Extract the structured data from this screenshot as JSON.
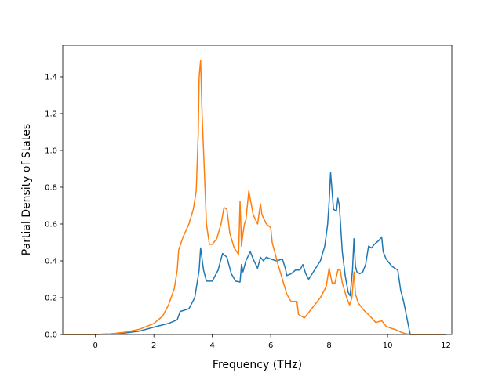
{
  "chart_data": {
    "type": "line",
    "title": "",
    "xlabel": "Frequency (THz)",
    "ylabel": "Partial Density of States",
    "xlim": [
      -1.12,
      12.2
    ],
    "ylim": [
      0.0,
      1.57
    ],
    "xticks": [
      0,
      2,
      4,
      6,
      8,
      10,
      12
    ],
    "xtick_labels": [
      "0",
      "2",
      "4",
      "6",
      "8",
      "10",
      "12"
    ],
    "yticks": [
      0.0,
      0.2,
      0.4,
      0.6,
      0.8,
      1.0,
      1.2,
      1.4
    ],
    "ytick_labels": [
      "0.0",
      "0.2",
      "0.4",
      "0.6",
      "0.8",
      "1.0",
      "1.2",
      "1.4"
    ],
    "grid": false,
    "legend": "none",
    "series": [
      {
        "color": "#1f77b4",
        "x": [
          -1.12,
          0.0,
          0.5,
          1.0,
          1.5,
          2.0,
          2.5,
          2.8,
          2.9,
          3.2,
          3.4,
          3.55,
          3.6,
          3.7,
          3.8,
          4.0,
          4.2,
          4.35,
          4.5,
          4.65,
          4.8,
          4.95,
          5.0,
          5.05,
          5.15,
          5.3,
          5.4,
          5.55,
          5.65,
          5.75,
          5.85,
          6.0,
          6.2,
          6.4,
          6.5,
          6.55,
          6.7,
          6.85,
          7.0,
          7.1,
          7.2,
          7.3,
          7.5,
          7.7,
          7.85,
          7.95,
          8.0,
          8.05,
          8.15,
          8.25,
          8.3,
          8.35,
          8.45,
          8.55,
          8.65,
          8.72,
          8.8,
          8.85,
          8.9,
          8.95,
          9.05,
          9.15,
          9.25,
          9.35,
          9.45,
          9.55,
          9.7,
          9.8,
          9.85,
          9.95,
          10.15,
          10.35,
          10.45,
          10.55,
          10.65,
          10.75,
          10.78,
          10.85,
          12.0
        ],
        "values": [
          0.0,
          0.0,
          0.003,
          0.008,
          0.018,
          0.04,
          0.06,
          0.08,
          0.125,
          0.14,
          0.2,
          0.35,
          0.47,
          0.35,
          0.29,
          0.29,
          0.35,
          0.44,
          0.42,
          0.33,
          0.29,
          0.285,
          0.38,
          0.34,
          0.4,
          0.45,
          0.41,
          0.36,
          0.42,
          0.4,
          0.42,
          0.41,
          0.4,
          0.41,
          0.36,
          0.32,
          0.33,
          0.35,
          0.35,
          0.38,
          0.33,
          0.3,
          0.35,
          0.4,
          0.48,
          0.6,
          0.72,
          0.88,
          0.68,
          0.67,
          0.74,
          0.7,
          0.45,
          0.32,
          0.23,
          0.21,
          0.35,
          0.52,
          0.37,
          0.34,
          0.33,
          0.34,
          0.38,
          0.48,
          0.47,
          0.49,
          0.51,
          0.53,
          0.45,
          0.41,
          0.37,
          0.35,
          0.24,
          0.18,
          0.1,
          0.02,
          0.0,
          0.0,
          0.0
        ]
      },
      {
        "color": "#ff7f0e",
        "x": [
          -1.12,
          0.0,
          0.5,
          1.0,
          1.5,
          2.0,
          2.3,
          2.5,
          2.7,
          2.8,
          2.85,
          3.0,
          3.2,
          3.35,
          3.45,
          3.52,
          3.55,
          3.6,
          3.65,
          3.75,
          3.8,
          3.9,
          4.0,
          4.15,
          4.3,
          4.4,
          4.5,
          4.6,
          4.75,
          4.9,
          4.95,
          5.0,
          5.05,
          5.1,
          5.15,
          5.25,
          5.4,
          5.55,
          5.65,
          5.7,
          5.85,
          6.0,
          6.05,
          6.25,
          6.4,
          6.55,
          6.65,
          6.7,
          6.9,
          6.95,
          7.05,
          7.15,
          7.3,
          7.5,
          7.7,
          7.9,
          8.0,
          8.1,
          8.2,
          8.3,
          8.38,
          8.45,
          8.6,
          8.7,
          8.78,
          8.85,
          8.9,
          9.0,
          9.2,
          9.4,
          9.6,
          9.8,
          9.95,
          10.1,
          10.3,
          10.5,
          10.65,
          10.8,
          11.0,
          11.9
        ],
        "values": [
          0.0,
          0.0,
          0.003,
          0.012,
          0.028,
          0.06,
          0.1,
          0.16,
          0.25,
          0.35,
          0.46,
          0.53,
          0.6,
          0.68,
          0.78,
          1.1,
          1.4,
          1.49,
          1.2,
          0.8,
          0.6,
          0.49,
          0.49,
          0.52,
          0.6,
          0.69,
          0.68,
          0.55,
          0.47,
          0.435,
          0.725,
          0.48,
          0.55,
          0.6,
          0.62,
          0.78,
          0.65,
          0.6,
          0.71,
          0.65,
          0.6,
          0.58,
          0.5,
          0.38,
          0.3,
          0.22,
          0.19,
          0.18,
          0.18,
          0.11,
          0.1,
          0.09,
          0.12,
          0.16,
          0.2,
          0.26,
          0.36,
          0.28,
          0.28,
          0.35,
          0.35,
          0.28,
          0.2,
          0.16,
          0.2,
          0.34,
          0.22,
          0.17,
          0.13,
          0.1,
          0.065,
          0.075,
          0.045,
          0.035,
          0.025,
          0.01,
          0.003,
          0.0,
          0.0,
          0.0
        ]
      }
    ]
  }
}
